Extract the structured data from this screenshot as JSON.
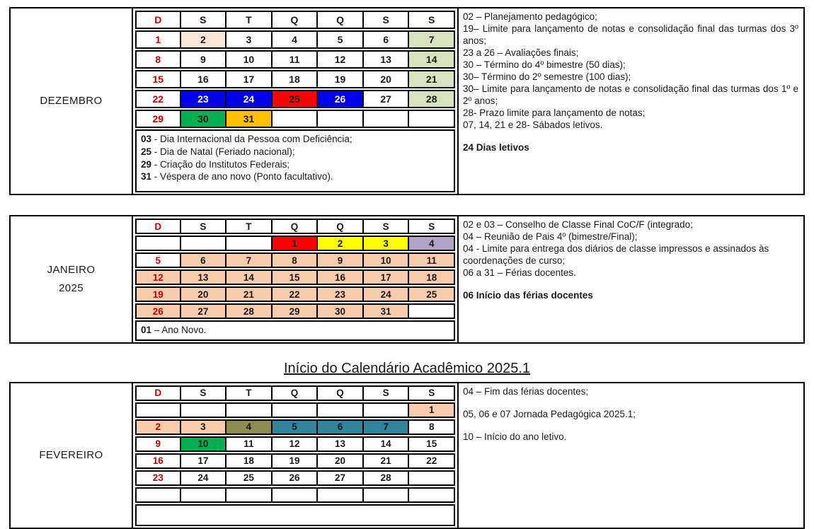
{
  "page": {
    "title": "Início do Calendário Acadêmico 2025.1"
  },
  "colors": {
    "red": "#FF0000",
    "blue": "#0000EE",
    "yellow": "#FFFF00",
    "green": "#00B050",
    "orange": "#FFC000",
    "light_green": "#D6E3BC",
    "peach": "#F8CBAD",
    "light_peach": "#FBE5D6",
    "lavender": "#B2A2C7",
    "olive": "#8C8B4F",
    "teal": "#31849B",
    "day_red": "#C00000"
  },
  "weekday_headers": [
    "D",
    "S",
    "T",
    "Q",
    "Q",
    "S",
    "S"
  ],
  "months": [
    {
      "id": "dezembro",
      "name_lines": [
        "DEZEMBRO"
      ],
      "weeks": [
        [
          {
            "d": "1",
            "fg": "red"
          },
          {
            "d": "2",
            "bg": "light_peach"
          },
          {
            "d": "3"
          },
          {
            "d": "4"
          },
          {
            "d": "5"
          },
          {
            "d": "6"
          },
          {
            "d": "7",
            "bg": "light_green"
          }
        ],
        [
          {
            "d": "8",
            "fg": "red"
          },
          {
            "d": "9"
          },
          {
            "d": "10"
          },
          {
            "d": "11"
          },
          {
            "d": "12"
          },
          {
            "d": "13"
          },
          {
            "d": "14",
            "bg": "light_green"
          }
        ],
        [
          {
            "d": "15",
            "fg": "red"
          },
          {
            "d": "16"
          },
          {
            "d": "17"
          },
          {
            "d": "18"
          },
          {
            "d": "19"
          },
          {
            "d": "20"
          },
          {
            "d": "21",
            "bg": "light_green"
          }
        ],
        [
          {
            "d": "22",
            "fg": "red"
          },
          {
            "d": "23",
            "bg": "blue",
            "fg": "white"
          },
          {
            "d": "24",
            "bg": "blue",
            "fg": "white"
          },
          {
            "d": "25",
            "bg": "red"
          },
          {
            "d": "26",
            "bg": "blue",
            "fg": "white"
          },
          {
            "d": "27"
          },
          {
            "d": "28",
            "bg": "light_green"
          }
        ],
        [
          {
            "d": "29",
            "fg": "red"
          },
          {
            "d": "30",
            "bg": "green"
          },
          {
            "d": "31",
            "bg": "orange"
          },
          {},
          {},
          {},
          {}
        ]
      ],
      "footer_notes": [
        {
          "b": "03",
          "t": "- Dia Internacional da Pessoa com Deficiência;"
        },
        {
          "b": "25",
          "t": "- Dia de Natal (Feriado nacional);"
        },
        {
          "b": "29",
          "t": "- Criação do Institutos Federais;"
        },
        {
          "b": "31",
          "t": "- Véspera de ano novo (Ponto facultativo)."
        }
      ],
      "side_notes": [
        {
          "t": "02 – Planejamento  pedagógico;"
        },
        {
          "t": "19– Limite para lançamento de notas e consolidação final das turmas dos 3º anos;",
          "justify": true
        },
        {
          "t": "23 a 26 – Avaliações finais;"
        },
        {
          "t": "30 – Término do 4º bimestre (50 dias);"
        },
        {
          "t": "30– Término do 2º semestre (100 dias);"
        },
        {
          "t": "30– Limite para lançamento de notas e consolidação final das turmas dos 1º e 2º anos;",
          "justify": true
        },
        {
          "t": "28- Prazo limite para lançamento de notas;"
        },
        {
          "t": "07, 14, 21 e 28- Sábados letivos."
        },
        {
          "t": "24 Dias letivos",
          "bold": true,
          "gap_before": true
        }
      ]
    },
    {
      "id": "janeiro",
      "name_lines": [
        "JANEIRO",
        "2025"
      ],
      "weeks": [
        [
          {},
          {},
          {},
          {
            "d": "1",
            "bg": "red"
          },
          {
            "d": "2",
            "bg": "yellow"
          },
          {
            "d": "3",
            "bg": "yellow"
          },
          {
            "d": "4",
            "bg": "lavender"
          }
        ],
        [
          {
            "d": "5",
            "fg": "red"
          },
          {
            "d": "6",
            "bg": "peach"
          },
          {
            "d": "7",
            "bg": "peach"
          },
          {
            "d": "8",
            "bg": "peach"
          },
          {
            "d": "9",
            "bg": "peach"
          },
          {
            "d": "10",
            "bg": "peach"
          },
          {
            "d": "11",
            "bg": "peach"
          }
        ],
        [
          {
            "d": "12",
            "bg": "peach",
            "fg": "red"
          },
          {
            "d": "13",
            "bg": "peach"
          },
          {
            "d": "14",
            "bg": "peach"
          },
          {
            "d": "15",
            "bg": "peach"
          },
          {
            "d": "16",
            "bg": "peach"
          },
          {
            "d": "17",
            "bg": "peach"
          },
          {
            "d": "18",
            "bg": "peach"
          }
        ],
        [
          {
            "d": "19",
            "bg": "peach",
            "fg": "red"
          },
          {
            "d": "20",
            "bg": "peach"
          },
          {
            "d": "21",
            "bg": "peach"
          },
          {
            "d": "22",
            "bg": "peach"
          },
          {
            "d": "23",
            "bg": "peach"
          },
          {
            "d": "24",
            "bg": "peach"
          },
          {
            "d": "25",
            "bg": "peach"
          }
        ],
        [
          {
            "d": "26",
            "bg": "peach",
            "fg": "red"
          },
          {
            "d": "27",
            "bg": "peach"
          },
          {
            "d": "28",
            "bg": "peach"
          },
          {
            "d": "29",
            "bg": "peach"
          },
          {
            "d": "30",
            "bg": "peach"
          },
          {
            "d": "31",
            "bg": "peach"
          },
          {}
        ]
      ],
      "footer_notes": [
        {
          "b": "01",
          "t": "– Ano Novo."
        }
      ],
      "side_notes": [
        {
          "t": "02 e 03 – Conselho de Classe Final CoC/F (integrado;"
        },
        {
          "t": "04 – Reunião de Pais 4º (bimestre/Final);"
        },
        {
          "t": "04 - Limite para entrega dos diários de classe impressos e assinados às coordenações de curso;"
        },
        {
          "t": "06 a 31 – Férias docentes."
        },
        {
          "t": "06 Início das férias docentes",
          "bold": true,
          "gap_before": true
        }
      ]
    },
    {
      "id": "fevereiro",
      "name_lines": [
        "FEVEREIRO"
      ],
      "weeks": [
        [
          {},
          {},
          {},
          {},
          {},
          {},
          {
            "d": "1",
            "bg": "peach"
          }
        ],
        [
          {
            "d": "2",
            "bg": "peach",
            "fg": "red"
          },
          {
            "d": "3",
            "bg": "peach"
          },
          {
            "d": "4",
            "bg": "olive"
          },
          {
            "d": "5",
            "bg": "teal"
          },
          {
            "d": "6",
            "bg": "teal"
          },
          {
            "d": "7",
            "bg": "teal"
          },
          {
            "d": "8"
          }
        ],
        [
          {
            "d": "9",
            "fg": "red"
          },
          {
            "d": "10",
            "bg": "green"
          },
          {
            "d": "11"
          },
          {
            "d": "12"
          },
          {
            "d": "13"
          },
          {
            "d": "14"
          },
          {
            "d": "15"
          }
        ],
        [
          {
            "d": "16",
            "fg": "red"
          },
          {
            "d": "17"
          },
          {
            "d": "18"
          },
          {
            "d": "19"
          },
          {
            "d": "20"
          },
          {
            "d": "21"
          },
          {
            "d": "22"
          }
        ],
        [
          {
            "d": "23",
            "fg": "red"
          },
          {
            "d": "24"
          },
          {
            "d": "25"
          },
          {
            "d": "26"
          },
          {
            "d": "27"
          },
          {
            "d": "28"
          },
          {}
        ],
        [
          {},
          {},
          {},
          {},
          {},
          {},
          {}
        ]
      ],
      "footer_notes": [],
      "side_notes": [
        {
          "t": "04 – Fim das férias docentes;"
        },
        {
          "t": "05, 06 e 07 Jornada Pedagógica 2025.1;",
          "gap_before": true
        },
        {
          "t": "10 – Início do ano letivo.",
          "gap_before": true
        }
      ]
    }
  ]
}
